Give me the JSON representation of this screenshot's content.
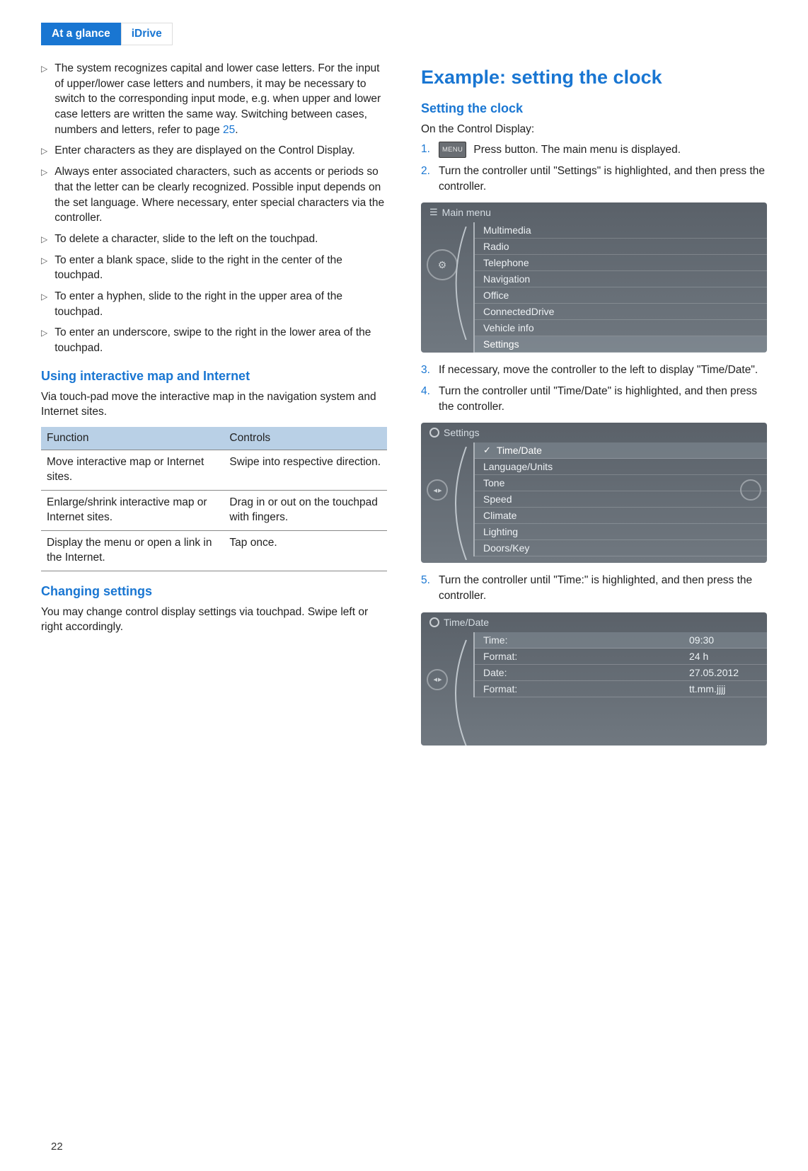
{
  "tabs": {
    "active": "At a glance",
    "inactive": "iDrive"
  },
  "left": {
    "bullets": [
      {
        "pre": "The system recognizes capital and lower case letters. For the input of upper/lower case letters and numbers, it may be necessary to switch to the corresponding input mode, e.g. when upper and lower case letters are written the same way. Switching between cases, numbers and letters, refer to page ",
        "link": "25",
        "post": "."
      },
      {
        "pre": "Enter characters as they are displayed on the Control Display."
      },
      {
        "pre": "Always enter associated characters, such as accents or periods so that the letter can be clearly recognized. Possible input depends on the set language. Where necessary, enter special characters via the controller."
      },
      {
        "pre": "To delete a character, slide to the left on the touchpad."
      },
      {
        "pre": "To enter a blank space, slide to the right in the center of the touchpad."
      },
      {
        "pre": "To enter a hyphen, slide to the right in the upper area of the touchpad."
      },
      {
        "pre": "To enter an underscore, swipe to the right in the lower area of the touchpad."
      }
    ],
    "h2a": "Using interactive map and Internet",
    "pa": "Via touch-pad move the interactive map in the navigation system and Internet sites.",
    "table": {
      "headers": [
        "Function",
        "Controls"
      ],
      "rows": [
        [
          "Move interactive map or Internet sites.",
          "Swipe into respective direction."
        ],
        [
          "Enlarge/shrink interactive map or Internet sites.",
          "Drag in or out on the touchpad with fingers."
        ],
        [
          "Display the menu or open a link in the Internet.",
          "Tap once."
        ]
      ]
    },
    "h2b": "Changing settings",
    "pb": "You may change control display settings via touchpad. Swipe left or right accordingly."
  },
  "right": {
    "h1": "Example: setting the clock",
    "h2": "Setting the clock",
    "intro": "On the Control Display:",
    "menu_btn": "MENU",
    "steps": {
      "s1a": " Press button. The main menu is displayed.",
      "s2": "Turn the controller until \"Settings\" is highlighted, and then press the controller.",
      "s3": "If necessary, move the controller to the left to display \"Time/Date\".",
      "s4": "Turn the controller until \"Time/Date\" is highlighted, and then press the controller.",
      "s5": "Turn the controller until \"Time:\" is highlighted, and then press the controller."
    },
    "screen1": {
      "title": "Main menu",
      "items": [
        "Multimedia",
        "Radio",
        "Telephone",
        "Navigation",
        "Office",
        "ConnectedDrive",
        "Vehicle info",
        "Settings"
      ],
      "selected": 7
    },
    "screen2": {
      "title": "Settings",
      "items": [
        "Time/Date",
        "Language/Units",
        "Tone",
        "Speed",
        "Climate",
        "Lighting",
        "Doors/Key"
      ],
      "selected": 0,
      "checked": 0
    },
    "screen3": {
      "title": "Time/Date",
      "rows": [
        {
          "k": "Time:",
          "v": "09:30",
          "sel": true
        },
        {
          "k": "Format:",
          "v": "24 h"
        },
        {
          "k": "Date:",
          "v": "27.05.2012"
        },
        {
          "k": "Format:",
          "v": "tt.mm.jjjj"
        }
      ]
    }
  },
  "page_number": "22",
  "colors": {
    "brand": "#1976d2",
    "th_bg": "#b9d0e6",
    "screen_bg": "#656c74"
  }
}
